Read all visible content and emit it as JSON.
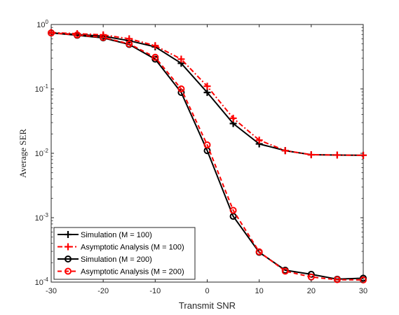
{
  "chart_data": {
    "type": "line",
    "title": "",
    "xlabel": "Transmit SNR",
    "ylabel": "Average SER",
    "xlim": [
      -30,
      30
    ],
    "ylim": [
      0.0001,
      1
    ],
    "yscale": "log",
    "grid": false,
    "legend_position": "bottom-left",
    "x_ticks": [
      -30,
      -20,
      -10,
      0,
      10,
      20,
      30
    ],
    "x_tick_labels": [
      "-30",
      "-20",
      "-10",
      "0",
      "10",
      "20",
      "30"
    ],
    "y_ticks": [
      {
        "value": 0.0001,
        "base": "10",
        "exp": "-4"
      },
      {
        "value": 0.001,
        "base": "10",
        "exp": "-3"
      },
      {
        "value": 0.01,
        "base": "10",
        "exp": "-2"
      },
      {
        "value": 0.1,
        "base": "10",
        "exp": "-1"
      },
      {
        "value": 1,
        "base": "10",
        "exp": "0"
      }
    ],
    "x": [
      -30,
      -25,
      -20,
      -15,
      -10,
      -5,
      0,
      5,
      10,
      15,
      20,
      25,
      30
    ],
    "series": [
      {
        "name": "Simulation (M = 100)",
        "color": "#000000",
        "dash": "solid",
        "marker": "plus",
        "values": [
          0.74,
          0.7,
          0.66,
          0.56,
          0.45,
          0.25,
          0.088,
          0.029,
          0.014,
          0.011,
          0.0095,
          0.0094,
          0.0093
        ]
      },
      {
        "name": "Asymptotic Analysis (M = 100)",
        "color": "#ff0000",
        "dash": "dashdot",
        "marker": "plus",
        "values": [
          0.75,
          0.72,
          0.69,
          0.6,
          0.47,
          0.29,
          0.11,
          0.035,
          0.016,
          0.011,
          0.0095,
          0.0094,
          0.0093
        ]
      },
      {
        "name": "Simulation (M = 200)",
        "color": "#000000",
        "dash": "solid",
        "marker": "circle",
        "values": [
          0.74,
          0.68,
          0.62,
          0.49,
          0.29,
          0.088,
          0.011,
          0.00105,
          0.00029,
          0.000153,
          0.000132,
          0.000111,
          0.000115
        ]
      },
      {
        "name": "Asymptotic Analysis (M = 200)",
        "color": "#ff0000",
        "dash": "dash",
        "marker": "circle",
        "values": [
          0.74,
          0.69,
          0.63,
          0.5,
          0.31,
          0.1,
          0.0135,
          0.0013,
          0.000295,
          0.000148,
          0.00012,
          0.000109,
          0.000108
        ]
      }
    ]
  }
}
